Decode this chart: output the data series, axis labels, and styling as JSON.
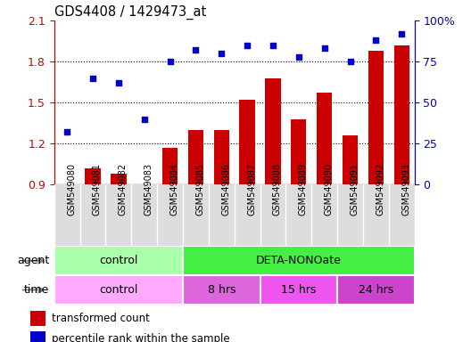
{
  "title": "GDS4408 / 1429473_at",
  "samples": [
    "GSM549080",
    "GSM549081",
    "GSM549082",
    "GSM549083",
    "GSM549084",
    "GSM549085",
    "GSM549086",
    "GSM549087",
    "GSM549088",
    "GSM549089",
    "GSM549090",
    "GSM549091",
    "GSM549092",
    "GSM549093"
  ],
  "transformed_count": [
    0.905,
    1.02,
    0.98,
    0.905,
    1.17,
    1.3,
    1.3,
    1.52,
    1.68,
    1.38,
    1.57,
    1.26,
    1.88,
    1.92
  ],
  "percentile_rank": [
    32,
    65,
    62,
    40,
    75,
    82,
    80,
    85,
    85,
    78,
    83,
    75,
    88,
    92
  ],
  "ylim_left": [
    0.9,
    2.1
  ],
  "ylim_right": [
    0,
    100
  ],
  "yticks_left": [
    0.9,
    1.2,
    1.5,
    1.8,
    2.1
  ],
  "yticks_right": [
    0,
    25,
    50,
    75,
    100
  ],
  "bar_color": "#cc0000",
  "dot_color": "#0000cc",
  "bar_bottom": 0.9,
  "agent_groups": [
    {
      "label": "control",
      "start": 0,
      "end": 5,
      "color": "#aaffaa"
    },
    {
      "label": "DETA-NONOate",
      "start": 5,
      "end": 14,
      "color": "#44ee44"
    }
  ],
  "time_groups": [
    {
      "label": "control",
      "start": 0,
      "end": 5,
      "color": "#ffaaff"
    },
    {
      "label": "8 hrs",
      "start": 5,
      "end": 8,
      "color": "#dd66dd"
    },
    {
      "label": "15 hrs",
      "start": 8,
      "end": 11,
      "color": "#ee55ee"
    },
    {
      "label": "24 hrs",
      "start": 11,
      "end": 14,
      "color": "#cc44cc"
    }
  ],
  "background_color": "#ffffff",
  "tick_label_color_left": "#cc0000",
  "tick_label_color_right": "#0000cc",
  "xtick_bg": "#dddddd"
}
